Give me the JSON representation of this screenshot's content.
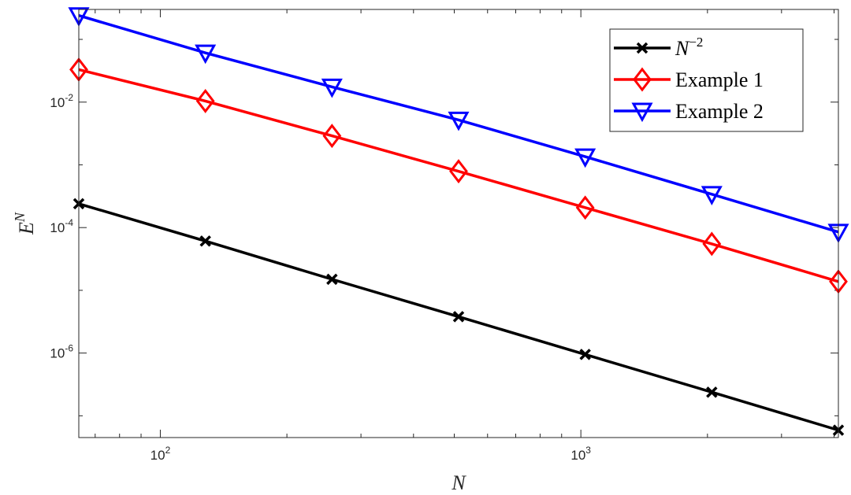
{
  "chart_data": {
    "type": "line",
    "x_scale": "log",
    "y_scale": "log",
    "x": [
      64,
      128,
      256,
      512,
      1024,
      2048,
      4096
    ],
    "xlim": [
      64,
      4096
    ],
    "ylim": [
      4.5e-08,
      0.3
    ],
    "xlabel": "N",
    "ylabel": "E",
    "ylabel_superscript": "N",
    "x_ticks": [
      {
        "value": 100,
        "base": "10",
        "exp": "2"
      },
      {
        "value": 1000,
        "base": "10",
        "exp": "3"
      }
    ],
    "y_ticks": [
      {
        "value": 1e-06,
        "base": "10",
        "exp": "-6"
      },
      {
        "value": 0.0001,
        "base": "10",
        "exp": "-4"
      },
      {
        "value": 0.01,
        "base": "10",
        "exp": "-2"
      }
    ],
    "grid": false,
    "box": true,
    "legend_position": "top-right",
    "series": [
      {
        "name": "N",
        "name_superscript": "−2",
        "color": "#000000",
        "marker": "x",
        "values": [
          0.00024,
          6.1e-05,
          1.5e-05,
          3.8e-06,
          9.5e-07,
          2.38e-07,
          5.9e-08
        ]
      },
      {
        "name": "Example 1",
        "color": "#ff0000",
        "marker": "diamond",
        "values": [
          0.033,
          0.0104,
          0.0029,
          0.00079,
          0.000208,
          5.5e-05,
          1.38e-05
        ]
      },
      {
        "name": "Example 2",
        "color": "#0000ff",
        "marker": "triangle-down",
        "values": [
          0.24,
          0.061,
          0.0175,
          0.0052,
          0.00135,
          0.00034,
          8.5e-05
        ]
      }
    ]
  }
}
